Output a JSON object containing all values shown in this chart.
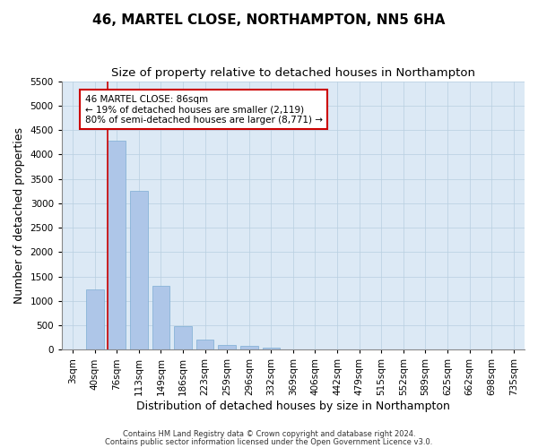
{
  "title1": "46, MARTEL CLOSE, NORTHAMPTON, NN5 6HA",
  "title2": "Size of property relative to detached houses in Northampton",
  "xlabel": "Distribution of detached houses by size in Northampton",
  "ylabel": "Number of detached properties",
  "categories": [
    "3sqm",
    "40sqm",
    "76sqm",
    "113sqm",
    "149sqm",
    "186sqm",
    "223sqm",
    "259sqm",
    "296sqm",
    "332sqm",
    "369sqm",
    "406sqm",
    "442sqm",
    "479sqm",
    "515sqm",
    "552sqm",
    "589sqm",
    "625sqm",
    "662sqm",
    "698sqm",
    "735sqm"
  ],
  "values": [
    0,
    1240,
    4280,
    3250,
    1300,
    480,
    200,
    100,
    70,
    50,
    0,
    0,
    0,
    0,
    0,
    0,
    0,
    0,
    0,
    0,
    0
  ],
  "bar_color": "#aec6e8",
  "bar_edge_color": "#7dadd4",
  "red_line_index": 2,
  "annotation_text": "46 MARTEL CLOSE: 86sqm\n← 19% of detached houses are smaller (2,119)\n80% of semi-detached houses are larger (8,771) →",
  "annotation_box_color": "#ffffff",
  "annotation_box_edge": "#cc0000",
  "ylim": [
    0,
    5500
  ],
  "yticks": [
    0,
    500,
    1000,
    1500,
    2000,
    2500,
    3000,
    3500,
    4000,
    4500,
    5000,
    5500
  ],
  "footer1": "Contains HM Land Registry data © Crown copyright and database right 2024.",
  "footer2": "Contains public sector information licensed under the Open Government Licence v3.0.",
  "bg_color": "#ffffff",
  "plot_bg_color": "#dce9f5",
  "grid_color": "#b8cfe0",
  "title1_fontsize": 11,
  "title2_fontsize": 9.5,
  "tick_fontsize": 7.5,
  "ylabel_fontsize": 9,
  "xlabel_fontsize": 9,
  "footer_fontsize": 6,
  "annotation_fontsize": 7.5
}
